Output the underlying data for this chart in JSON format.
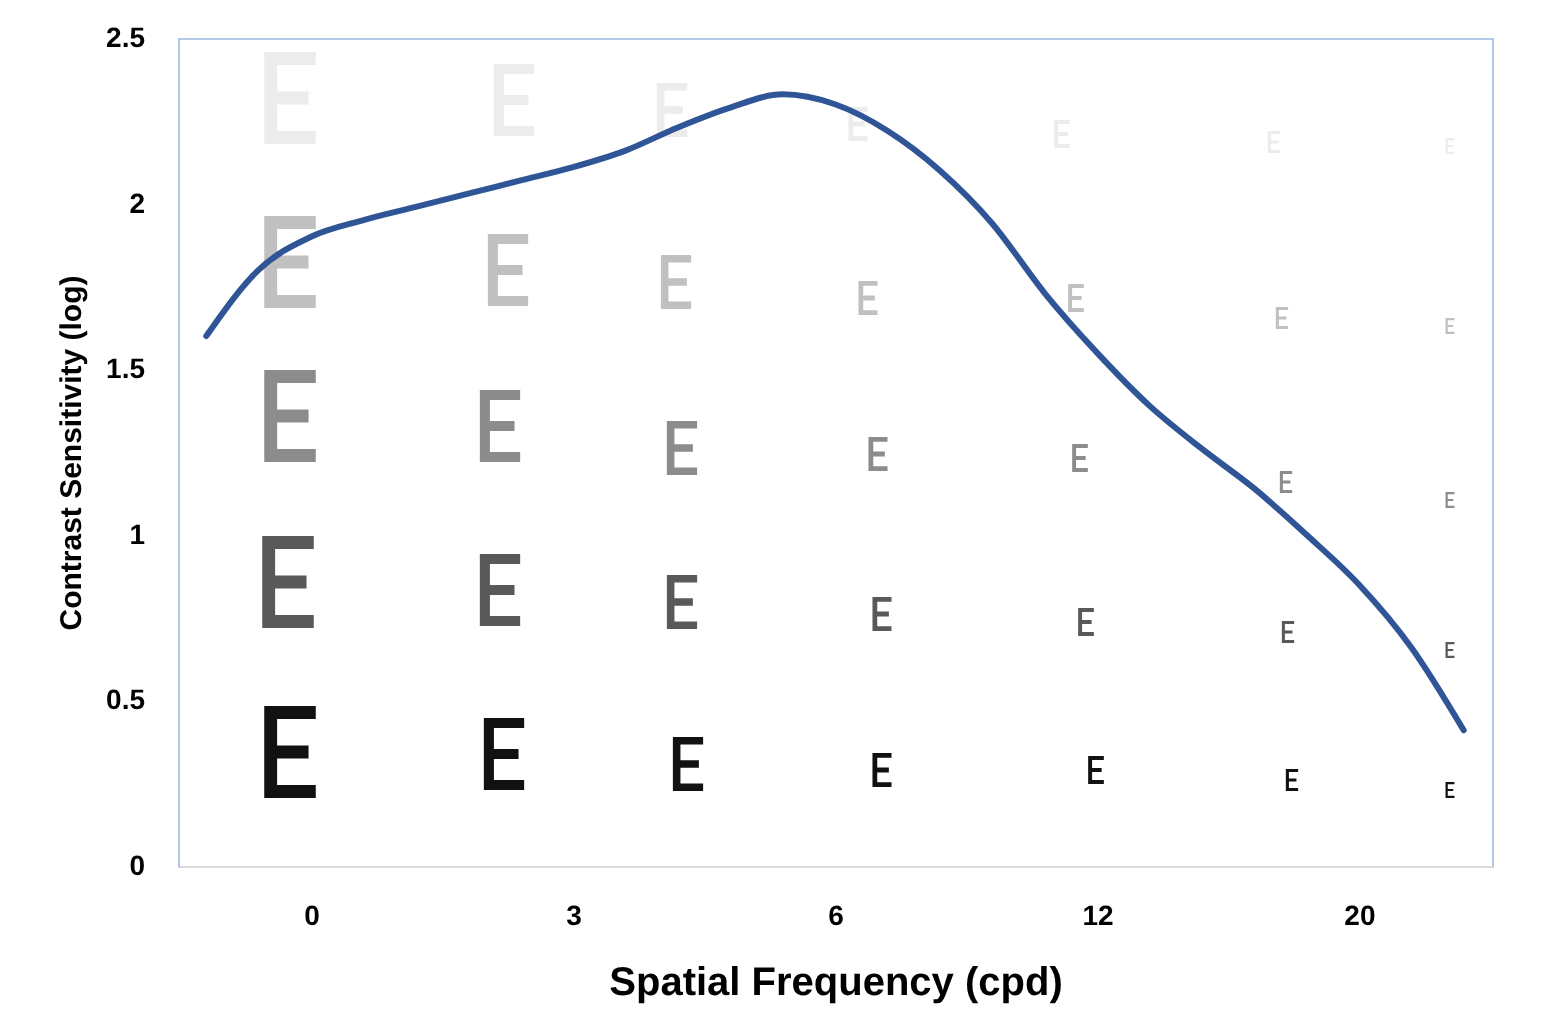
{
  "chart_data": {
    "type": "line",
    "xlabel": "Spatial Frequency (cpd)",
    "ylabel": "Contrast Sensitivity (log)",
    "categories": [
      null,
      null,
      "0",
      null,
      null,
      null,
      null,
      "3",
      null,
      null,
      null,
      null,
      "6",
      null,
      null,
      null,
      null,
      "12",
      null,
      null,
      null,
      null,
      "20",
      null,
      null
    ],
    "series": [
      {
        "color": "#2f5597",
        "values": [
          1.6,
          1.8,
          1.9,
          1.95,
          1.99,
          2.03,
          2.07,
          2.11,
          2.16,
          2.23,
          2.29,
          2.33,
          2.3,
          2.22,
          2.1,
          1.94,
          1.73,
          1.55,
          1.39,
          1.26,
          1.14,
          1.0,
          0.85,
          0.66,
          0.41
        ]
      }
    ],
    "ylim": [
      0,
      2.5
    ],
    "yticks": [
      0,
      0.5,
      1,
      1.5,
      2,
      2.5
    ],
    "grid": false,
    "marker": "none",
    "line_style": "solid"
  }
}
